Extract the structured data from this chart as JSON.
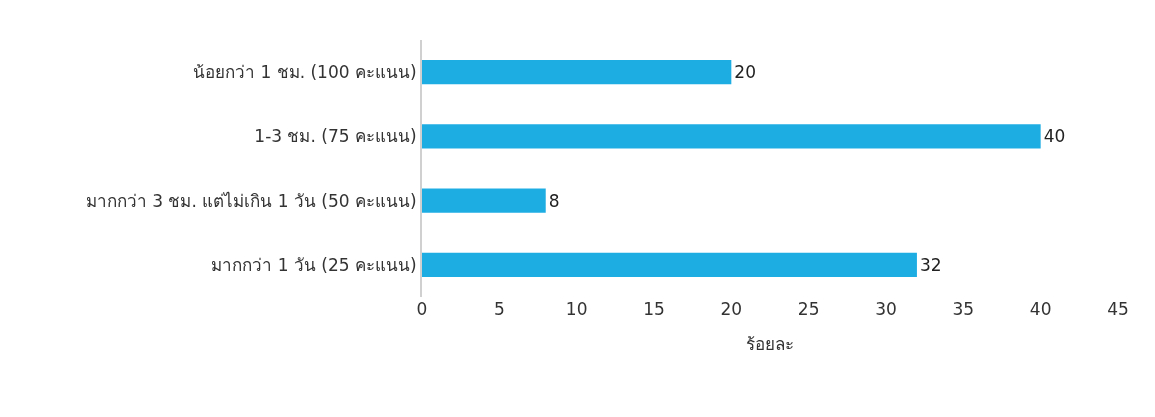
{
  "chart_data": {
    "type": "bar",
    "orientation": "horizontal",
    "categories": [
      "น้อยกว่า 1 ชม. (100 คะแนน)",
      "1-3 ชม. (75 คะแนน)",
      "มากกว่า 3 ชม. แต่ไม่เกิน 1 วัน (50 คะแนน)",
      "มากกว่า 1 วัน (25 คะแนน)"
    ],
    "values": [
      20,
      40,
      8,
      32
    ],
    "color": "#1eade3",
    "xlabel": "ร้อยละ",
    "xlim": [
      0,
      45
    ],
    "xticks": [
      0,
      5,
      10,
      15,
      20,
      25,
      30,
      35,
      40,
      45
    ],
    "data_labels": true,
    "grid": false,
    "legend": false
  }
}
